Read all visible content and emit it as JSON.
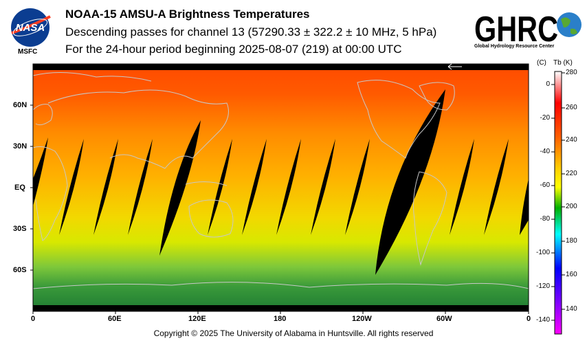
{
  "header": {
    "title": "NOAA-15 AMSU-A Brightness Temperatures",
    "subtitle": "Descending passes for channel 13 (57290.33 ± 322.2 ± 10 MHz, 5 hPa)",
    "period": "For the 24-hour period beginning 2025-08-07 (219) at 00:00 UTC"
  },
  "logos": {
    "nasa": {
      "wordmark": "NASA",
      "caption": "MSFC"
    },
    "ghrc": {
      "wordmark": "GHRC",
      "caption": "Global Hydrology Resource Center"
    }
  },
  "map": {
    "lat_labels": [
      "60N",
      "30N",
      "EQ",
      "30S",
      "60S"
    ],
    "lon_labels": [
      "0",
      "60E",
      "120E",
      "180",
      "120W",
      "60W",
      "0"
    ],
    "colors": {
      "no_data": "#000000",
      "coastline": "#bfbfbf"
    }
  },
  "colorbar": {
    "unit_celsius": "(C)",
    "unit_kelvin": "Tb  (K)",
    "kelvin_ticks": [
      "280",
      "260",
      "240",
      "220",
      "200",
      "180",
      "160",
      "140"
    ],
    "celsius_ticks": [
      "0",
      "-20",
      "-40",
      "-60",
      "-80",
      "-100",
      "-120",
      "-140"
    ],
    "colors": [
      "#ffffff",
      "#ff0000",
      "#ffa500",
      "#ffff00",
      "#00a000",
      "#00ffff",
      "#0000ff",
      "#ff00ff"
    ]
  },
  "footer": {
    "copyright": "Copyright © 2025 The University of Alabama in Huntsville.  All rights reserved"
  }
}
